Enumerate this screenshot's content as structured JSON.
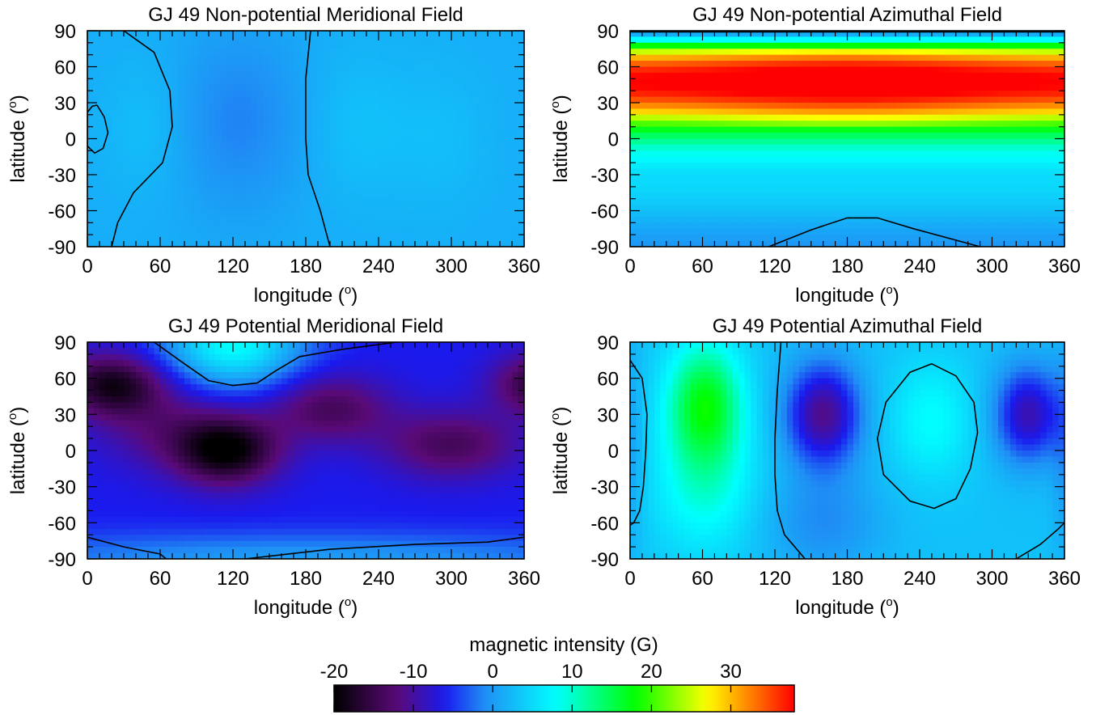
{
  "figure": {
    "colorbar_label": "magnetic intensity (G)",
    "colorbar_ticks": [
      -20,
      -10,
      0,
      10,
      20,
      30
    ],
    "colorbar_range": [
      -20,
      38
    ],
    "colormap": [
      "#000000",
      "#5a0a78",
      "#1a1aee",
      "#1f8ff5",
      "#00ffff",
      "#00ff00",
      "#ffff00",
      "#ff0000"
    ],
    "x_ticks": [
      0,
      60,
      120,
      180,
      240,
      300,
      360
    ],
    "y_ticks": [
      90,
      60,
      30,
      0,
      -30,
      -60,
      -90
    ]
  },
  "panels": [
    {
      "title": "GJ 49 Non-potential Meridional Field",
      "xlabel": "longitude (o)",
      "ylabel": "latitude (o)"
    },
    {
      "title": "GJ 49 Non-potential Azimuthal Field",
      "xlabel": "longitude (o)",
      "ylabel": "latitude (o)"
    },
    {
      "title": "GJ 49 Potential Meridional Field",
      "xlabel": "longitude (o)",
      "ylabel": "latitude (o)"
    },
    {
      "title": "GJ 49 Potential Azimuthal Field",
      "xlabel": "longitude (o)",
      "ylabel": "latitude (o)"
    }
  ],
  "chart_data": [
    {
      "type": "heatmap",
      "title": "GJ 49 Non-potential Meridional Field",
      "xlabel": "longitude (o)",
      "ylabel": "latitude (o)",
      "xlim": [
        0,
        360
      ],
      "ylim": [
        -90,
        90
      ],
      "background_value": 1.5,
      "blobs": [
        {
          "lon": 125,
          "lat": 15,
          "sx": 40,
          "sy": 55,
          "amp": -3
        },
        {
          "lon": 50,
          "lat": 10,
          "sx": 25,
          "sy": 40,
          "amp": 1.5
        },
        {
          "lon": 220,
          "lat": 10,
          "sx": 30,
          "sy": 45,
          "amp": 1.5
        },
        {
          "lon": 290,
          "lat": 0,
          "sx": 30,
          "sy": 45,
          "amp": 1.2
        }
      ],
      "zero_contours": [
        [
          [
            30,
            90
          ],
          [
            55,
            72
          ],
          [
            68,
            40
          ],
          [
            70,
            10
          ],
          [
            62,
            -20
          ],
          [
            38,
            -45
          ],
          [
            25,
            -70
          ],
          [
            20,
            -90
          ]
        ],
        [
          [
            184,
            90
          ],
          [
            180,
            50
          ],
          [
            180,
            0
          ],
          [
            182,
            -30
          ],
          [
            192,
            -60
          ],
          [
            200,
            -90
          ]
        ],
        [
          [
            8,
            28
          ],
          [
            14,
            18
          ],
          [
            17,
            5
          ],
          [
            13,
            -8
          ],
          [
            6,
            -12
          ],
          [
            0,
            -6
          ],
          [
            0,
            22
          ],
          [
            4,
            27
          ],
          [
            8,
            28
          ]
        ]
      ]
    },
    {
      "type": "heatmap",
      "title": "GJ 49 Non-potential Azimuthal Field",
      "xlabel": "longitude (o)",
      "ylabel": "latitude (o)",
      "xlim": [
        0,
        360
      ],
      "ylim": [
        -90,
        90
      ],
      "lat_profile": [
        [
          90,
          -1
        ],
        [
          84,
          5
        ],
        [
          78,
          17
        ],
        [
          70,
          28
        ],
        [
          60,
          35
        ],
        [
          50,
          38
        ],
        [
          40,
          37
        ],
        [
          30,
          33
        ],
        [
          22,
          28
        ],
        [
          14,
          21
        ],
        [
          6,
          16
        ],
        [
          0,
          13
        ],
        [
          -10,
          9
        ],
        [
          -20,
          7
        ],
        [
          -30,
          5
        ],
        [
          -40,
          5
        ],
        [
          -50,
          4
        ],
        [
          -60,
          3
        ],
        [
          -70,
          1.5
        ],
        [
          -80,
          0.5
        ],
        [
          -90,
          -0.5
        ]
      ],
      "lon_modulation": {
        "center": 180,
        "width": 90,
        "amp": 3
      },
      "zero_contours": [
        [
          [
            0,
            89
          ],
          [
            360,
            89
          ]
        ],
        [
          [
            115,
            -90
          ],
          [
            150,
            -76
          ],
          [
            180,
            -66
          ],
          [
            205,
            -66
          ],
          [
            235,
            -75
          ],
          [
            290,
            -90
          ]
        ]
      ]
    },
    {
      "type": "heatmap",
      "title": "GJ 49 Potential Meridional Field",
      "xlabel": "longitude (o)",
      "ylabel": "latitude (o)",
      "xlim": [
        0,
        360
      ],
      "ylim": [
        -90,
        90
      ],
      "background_value": -6,
      "blobs": [
        {
          "lon": 115,
          "lat": 0,
          "sx": 30,
          "sy": 20,
          "amp": -14
        },
        {
          "lon": 20,
          "lat": 55,
          "sx": 30,
          "sy": 18,
          "amp": -12
        },
        {
          "lon": 380,
          "lat": 55,
          "sx": 30,
          "sy": 18,
          "amp": -12
        },
        {
          "lon": 200,
          "lat": 35,
          "sx": 35,
          "sy": 20,
          "amp": -8
        },
        {
          "lon": 300,
          "lat": 5,
          "sx": 40,
          "sy": 20,
          "amp": -8
        },
        {
          "lon": 60,
          "lat": 20,
          "sx": 40,
          "sy": 25,
          "amp": -5
        },
        {
          "lon": 120,
          "lat": 88,
          "sx": 40,
          "sy": 25,
          "amp": 14
        },
        {
          "lon": 180,
          "lat": -90,
          "sx": 200,
          "sy": 15,
          "amp": 6
        }
      ],
      "zero_contours": [
        [
          [
            55,
            90
          ],
          [
            80,
            72
          ],
          [
            100,
            58
          ],
          [
            120,
            54
          ],
          [
            140,
            56
          ],
          [
            155,
            66
          ],
          [
            175,
            78
          ],
          [
            210,
            84
          ],
          [
            255,
            90
          ]
        ],
        [
          [
            0,
            -72
          ],
          [
            30,
            -80
          ],
          [
            60,
            -86
          ],
          [
            65,
            -90
          ]
        ],
        [
          [
            130,
            -90
          ],
          [
            200,
            -82
          ],
          [
            270,
            -78
          ],
          [
            330,
            -76
          ],
          [
            360,
            -72
          ]
        ]
      ]
    },
    {
      "type": "heatmap",
      "title": "GJ 49 Potential Azimuthal Field",
      "xlabel": "longitude (o)",
      "ylabel": "latitude (o)",
      "xlim": [
        0,
        360
      ],
      "ylim": [
        -90,
        90
      ],
      "background_value": 3,
      "blobs": [
        {
          "lon": 62,
          "lat": 40,
          "sx": 22,
          "sy": 35,
          "amp": 14
        },
        {
          "lon": 62,
          "lat": -30,
          "sx": 30,
          "sy": 40,
          "amp": 6
        },
        {
          "lon": 160,
          "lat": 30,
          "sx": 22,
          "sy": 30,
          "amp": -14
        },
        {
          "lon": 330,
          "lat": 30,
          "sx": 20,
          "sy": 28,
          "amp": -12
        },
        {
          "lon": 250,
          "lat": 25,
          "sx": 25,
          "sy": 35,
          "amp": 5
        },
        {
          "lon": 0,
          "lat": 0,
          "sx": 8,
          "sy": 60,
          "amp": -3
        },
        {
          "lon": 360,
          "lat": 0,
          "sx": 8,
          "sy": 60,
          "amp": -3
        },
        {
          "lon": 160,
          "lat": -60,
          "sx": 35,
          "sy": 30,
          "amp": -4
        }
      ],
      "zero_contours": [
        [
          [
            0,
            75
          ],
          [
            10,
            60
          ],
          [
            14,
            30
          ],
          [
            13,
            0
          ],
          [
            11,
            -30
          ],
          [
            8,
            -50
          ],
          [
            3,
            -60
          ],
          [
            0,
            -62
          ]
        ],
        [
          [
            125,
            90
          ],
          [
            122,
            50
          ],
          [
            120,
            10
          ],
          [
            120,
            -20
          ],
          [
            122,
            -50
          ],
          [
            128,
            -70
          ],
          [
            145,
            -90
          ]
        ],
        [
          [
            250,
            72
          ],
          [
            270,
            62
          ],
          [
            285,
            40
          ],
          [
            288,
            15
          ],
          [
            282,
            -15
          ],
          [
            270,
            -40
          ],
          [
            252,
            -48
          ],
          [
            232,
            -42
          ],
          [
            210,
            -20
          ],
          [
            205,
            10
          ],
          [
            212,
            40
          ],
          [
            232,
            65
          ],
          [
            250,
            72
          ]
        ],
        [
          [
            320,
            -90
          ],
          [
            340,
            -78
          ],
          [
            355,
            -65
          ],
          [
            360,
            -60
          ]
        ]
      ]
    }
  ]
}
